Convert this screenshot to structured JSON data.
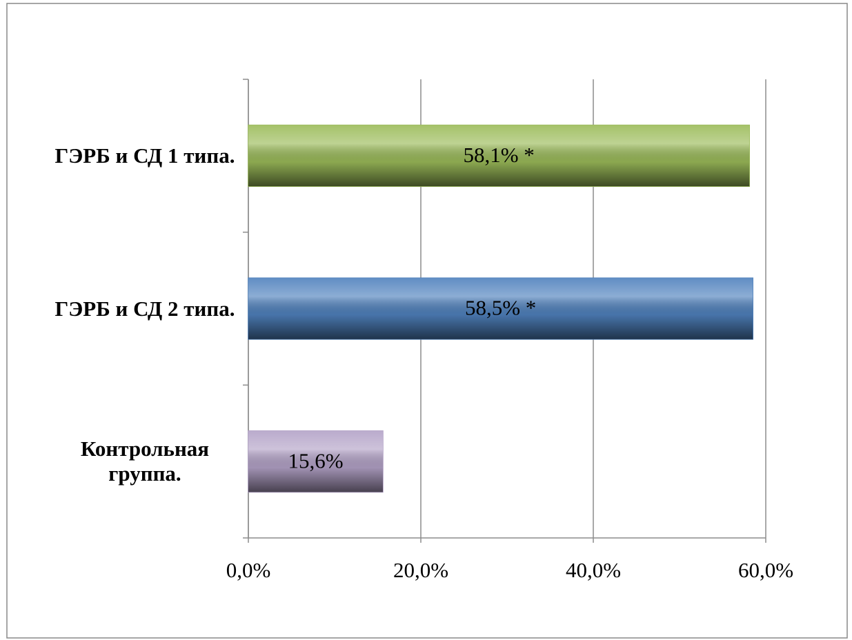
{
  "chart_data": {
    "type": "bar",
    "orientation": "horizontal",
    "categories": [
      "ГЭРБ и СД 1 типа.",
      "ГЭРБ и СД 2 типа.",
      "Контрольная группа."
    ],
    "values": [
      58.1,
      58.5,
      15.6
    ],
    "value_labels": [
      "58,1% *",
      "58,5% *",
      "15,6%"
    ],
    "colors": [
      "#9bbb59",
      "#4f81bd",
      "#b3a2c7"
    ],
    "xlim": [
      0,
      60
    ],
    "xticks": [
      {
        "value": 0,
        "label": "0,0%"
      },
      {
        "value": 20,
        "label": "20,0%"
      },
      {
        "value": 40,
        "label": "40,0%"
      },
      {
        "value": 60,
        "label": "60,0%"
      }
    ],
    "grid": true
  }
}
